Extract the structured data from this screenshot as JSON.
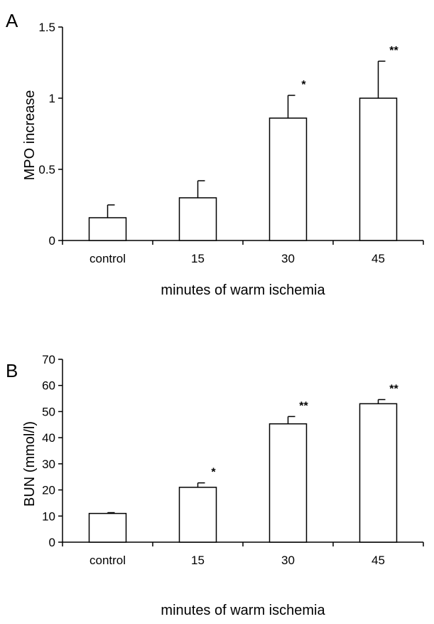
{
  "chart_data": [
    {
      "type": "bar",
      "panel_label": "A",
      "categories": [
        "control",
        "15",
        "30",
        "45"
      ],
      "values": [
        0.16,
        0.3,
        0.86,
        1.0
      ],
      "errors": [
        0.09,
        0.12,
        0.16,
        0.26
      ],
      "significance": [
        "",
        "",
        "*",
        "**"
      ],
      "ylabel": "MPO increase",
      "xlabel": "minutes of warm ischemia",
      "ylim": [
        0,
        1.5
      ],
      "yticks": [
        "0",
        "0.5",
        "1",
        "1.5"
      ],
      "grid": false
    },
    {
      "type": "bar",
      "panel_label": "B",
      "categories": [
        "control",
        "15",
        "30",
        "45"
      ],
      "values": [
        11,
        21,
        45.3,
        53
      ],
      "errors": [
        0.3,
        1.7,
        2.8,
        1.6
      ],
      "significance": [
        "",
        "*",
        "**",
        "**"
      ],
      "ylabel": "BUN (mmol/l)",
      "xlabel": "minutes of warm ischemia",
      "ylim": [
        0,
        70
      ],
      "yticks": [
        "0",
        "10",
        "20",
        "30",
        "40",
        "50",
        "60",
        "70"
      ],
      "grid": false
    }
  ]
}
